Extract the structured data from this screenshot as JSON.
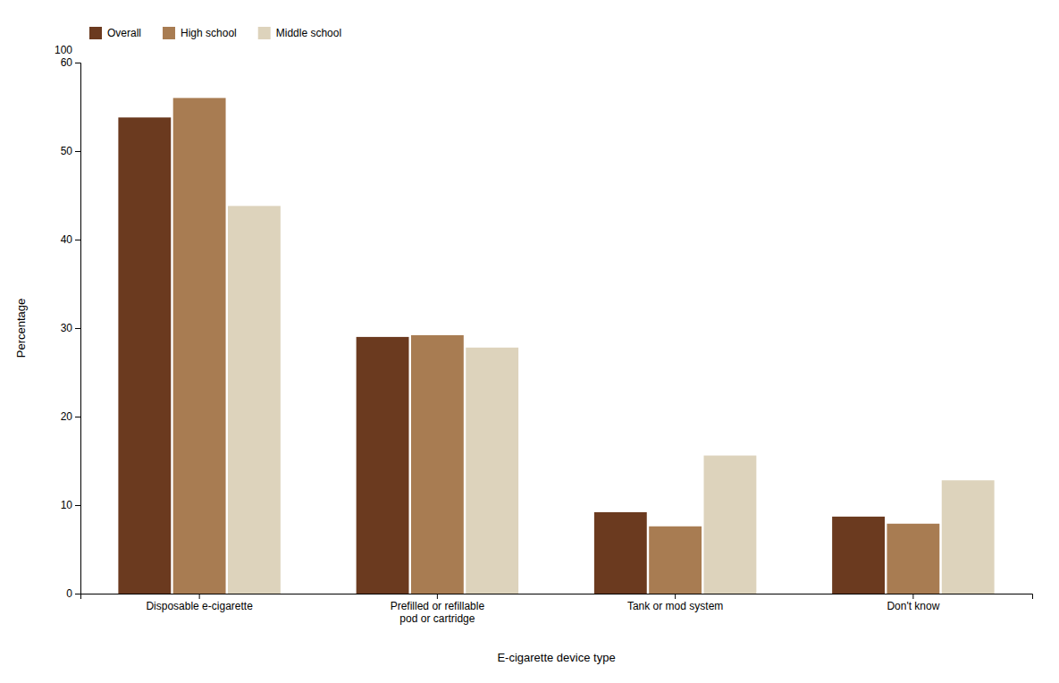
{
  "chart_data": {
    "type": "bar",
    "xlabel": "E-cigarette device type",
    "ylabel": "Percentage",
    "categories": [
      "Disposable e-cigarette",
      "Prefilled or refillable\npod or cartridge",
      "Tank or mod system",
      "Don't know"
    ],
    "series": [
      {
        "name": "Overall",
        "color": "#6B3A1F",
        "values": [
          53.8,
          29.0,
          9.2,
          8.7
        ]
      },
      {
        "name": "High school",
        "color": "#A87C52",
        "values": [
          56.0,
          29.2,
          7.6,
          7.9
        ]
      },
      {
        "name": "Middle school",
        "color": "#DDD3BC",
        "values": [
          43.8,
          27.8,
          15.6,
          12.8
        ]
      }
    ],
    "ylim": [
      0,
      60
    ],
    "yticks": [
      0,
      10,
      20,
      30,
      40,
      50,
      60
    ],
    "annotations": [
      {
        "text": "100",
        "y": 60
      }
    ],
    "grid": false,
    "legend": "top"
  }
}
